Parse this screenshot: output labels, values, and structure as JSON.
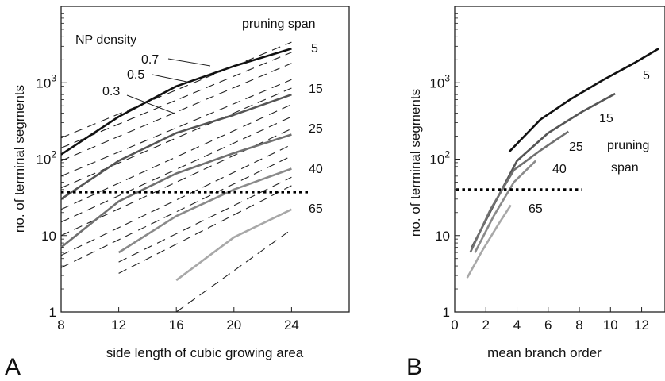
{
  "panel_labels": {
    "a": "A",
    "b": "B"
  },
  "chart_data": [
    {
      "panel": "A",
      "type": "line",
      "xlabel": "side length of cubic growing area",
      "ylabel": "no. of terminal segments",
      "xlim": [
        8,
        28
      ],
      "ylim": [
        1,
        10000
      ],
      "yscale": "log",
      "xticks": [
        "8",
        "12",
        "16",
        "20",
        "24"
      ],
      "yticks": [
        "1",
        "10",
        "10^2",
        "10^3"
      ],
      "grid": false,
      "legend": {
        "title": "pruning span",
        "placement": "right"
      },
      "series": [
        {
          "name": "5",
          "color": "#111111",
          "x": [
            8,
            12,
            16,
            20,
            24
          ],
          "y": [
            115,
            360,
            900,
            1650,
            2800
          ]
        },
        {
          "name": "15",
          "color": "#555555",
          "x": [
            8,
            12,
            16,
            20,
            24
          ],
          "y": [
            30,
            95,
            220,
            380,
            700
          ]
        },
        {
          "name": "25",
          "color": "#707070",
          "x": [
            8,
            12,
            16,
            20,
            24
          ],
          "y": [
            7,
            28,
            65,
            120,
            210
          ]
        },
        {
          "name": "40",
          "color": "#8a8a8a",
          "x": [
            12,
            16,
            20,
            24
          ],
          "y": [
            6,
            18,
            40,
            75
          ]
        },
        {
          "name": "65",
          "color": "#a8a8a8",
          "x": [
            16,
            20,
            24
          ],
          "y": [
            2.6,
            9.5,
            22
          ]
        }
      ],
      "dashed_lines": [
        {
          "x": [
            8,
            24
          ],
          "y": [
            190,
            3400
          ]
        },
        {
          "x": [
            8,
            24
          ],
          "y": [
            140,
            2500
          ]
        },
        {
          "x": [
            8,
            24
          ],
          "y": [
            95,
            1800
          ]
        },
        {
          "x": [
            8,
            24
          ],
          "y": [
            60,
            1100
          ]
        },
        {
          "x": [
            8,
            24
          ],
          "y": [
            42,
            850
          ]
        },
        {
          "x": [
            8,
            24
          ],
          "y": [
            22,
            520
          ]
        },
        {
          "x": [
            8,
            24
          ],
          "y": [
            15,
            360
          ]
        },
        {
          "x": [
            8,
            24
          ],
          "y": [
            10,
            250
          ]
        },
        {
          "x": [
            8,
            24
          ],
          "y": [
            5.5,
            155
          ]
        },
        {
          "x": [
            8,
            24
          ],
          "y": [
            3.8,
            110
          ]
        },
        {
          "x": [
            12,
            24
          ],
          "y": [
            3.2,
            45
          ]
        },
        {
          "x": [
            12,
            24
          ],
          "y": [
            4.5,
            58
          ]
        },
        {
          "x": [
            16,
            24
          ],
          "y": [
            1,
            12
          ]
        }
      ],
      "reference_line": {
        "y": 37,
        "x": [
          8,
          25.3
        ]
      },
      "annotations": {
        "np_density_title": "NP density",
        "np_values": [
          "0.7",
          "0.5",
          "0.3"
        ],
        "legend_title": "pruning span",
        "span_labels": [
          "5",
          "15",
          "25",
          "40",
          "65"
        ]
      }
    },
    {
      "panel": "B",
      "type": "line",
      "xlabel": "mean branch order",
      "ylabel": "no. of terminal segments",
      "xlim": [
        0,
        13.5
      ],
      "ylim": [
        1,
        10000
      ],
      "yscale": "log",
      "xticks": [
        "0",
        "2",
        "4",
        "6",
        "8",
        "10",
        "12"
      ],
      "yticks": [
        "1",
        "10",
        "10^2",
        "10^3"
      ],
      "grid": false,
      "legend": {
        "title_line1": "pruning",
        "title_line2": "span",
        "placement": "right"
      },
      "series": [
        {
          "name": "5",
          "color": "#111111",
          "x": [
            3.5,
            5.5,
            7.5,
            9.5,
            11.5,
            13.1
          ],
          "y": [
            125,
            330,
            620,
            1080,
            1800,
            2800
          ]
        },
        {
          "name": "15",
          "color": "#555555",
          "x": [
            1.1,
            2.5,
            4.0,
            6.0,
            8.2,
            10.3
          ],
          "y": [
            7,
            25,
            95,
            220,
            420,
            720
          ]
        },
        {
          "name": "25",
          "color": "#707070",
          "x": [
            1.0,
            2.3,
            3.8,
            5.5,
            7.3
          ],
          "y": [
            6,
            22,
            72,
            130,
            230
          ]
        },
        {
          "name": "40",
          "color": "#8a8a8a",
          "x": [
            1.3,
            2.5,
            3.8,
            5.2
          ],
          "y": [
            6,
            18,
            50,
            95
          ]
        },
        {
          "name": "65",
          "color": "#a8a8a8",
          "x": [
            0.8,
            1.8,
            2.8,
            3.6
          ],
          "y": [
            2.8,
            6.5,
            14,
            25
          ]
        }
      ],
      "reference_line": {
        "y": 40,
        "x": [
          0.1,
          8.2
        ]
      },
      "annotations": {
        "legend_title_line1": "pruning",
        "legend_title_line2": "span",
        "span_labels": [
          "5",
          "15",
          "25",
          "40",
          "65"
        ]
      }
    }
  ]
}
